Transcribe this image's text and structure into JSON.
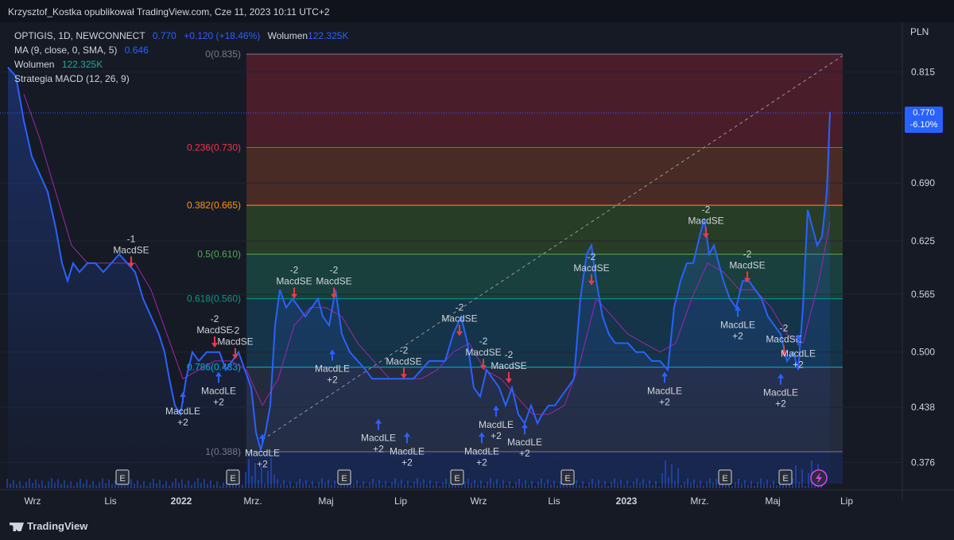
{
  "header": {
    "title": "Krzysztof_Kostka opublikował TradingView.com, Cze 11, 2023 10:11 UTC+2"
  },
  "legend": {
    "symbol": "OPTIGIS, 1D, NEWCONNECT",
    "price": "0.770",
    "change": "+0.120 (+18.46%)",
    "volume_label": "Wolumen",
    "volume_value": "122.325K",
    "ma_label": "MA (9, close, 0, SMA, 5)",
    "ma_value": "0.646",
    "volume2_label": "Wolumen",
    "volume2_value": "122.325K",
    "strategy_label": "Strategia MACD (12, 26, 9)"
  },
  "price_axis": {
    "currency": "PLN",
    "ticks": [
      "0.815",
      "0.690",
      "0.625",
      "0.565",
      "0.500",
      "0.438",
      "0.376"
    ]
  },
  "price_tag": {
    "value": "0.770",
    "change": "-6.10%"
  },
  "time_axis": {
    "labels": [
      "Wrz",
      "Lis",
      "2022",
      "Mrz.",
      "Maj",
      "Lip",
      "Wrz",
      "Lis",
      "2023",
      "Mrz.",
      "Maj",
      "Lip"
    ]
  },
  "footer": {
    "brand": "TradingView"
  },
  "colors": {
    "background": "#161a25",
    "price_line": "#2962ff",
    "ma_line": "#9c27b0",
    "buy_arrow": "#2962ff",
    "sell_arrow": "#f23645"
  },
  "chart_data": {
    "type": "line",
    "ylim": [
      0.35,
      0.87
    ],
    "fib_levels": [
      {
        "ratio": "0",
        "price": 0.835,
        "label": "0(0.835)",
        "color": "#787b86",
        "fill": "#5c1f2e"
      },
      {
        "ratio": "0.236",
        "price": 0.73,
        "label": "0.236(0.730)",
        "color": "#f23645",
        "fill": "#5a3224"
      },
      {
        "ratio": "0.382",
        "price": 0.665,
        "label": "0.382(0.665)",
        "color": "#ff9800",
        "fill": "#2e4a26"
      },
      {
        "ratio": "0.5",
        "price": 0.61,
        "label": "0.5(0.610)",
        "color": "#4caf50",
        "fill": "#1b4d45"
      },
      {
        "ratio": "0.618",
        "price": 0.56,
        "label": "0.618(0.560)",
        "color": "#089981",
        "fill": "#153e56"
      },
      {
        "ratio": "0.786",
        "price": 0.483,
        "label": "0.786(0.483)",
        "color": "#00bcd4",
        "fill": "#2a3144"
      },
      {
        "ratio": "1",
        "price": 0.388,
        "label": "1(0.388)",
        "color": "#787b86",
        "fill": "#1a2a55"
      }
    ],
    "price_series": [
      [
        0,
        0.82
      ],
      [
        10,
        0.81
      ],
      [
        20,
        0.76
      ],
      [
        30,
        0.72
      ],
      [
        40,
        0.7
      ],
      [
        50,
        0.68
      ],
      [
        60,
        0.64
      ],
      [
        68,
        0.6
      ],
      [
        75,
        0.58
      ],
      [
        82,
        0.6
      ],
      [
        90,
        0.59
      ],
      [
        100,
        0.6
      ],
      [
        110,
        0.6
      ],
      [
        120,
        0.59
      ],
      [
        130,
        0.6
      ],
      [
        140,
        0.61
      ],
      [
        150,
        0.6
      ],
      [
        160,
        0.59
      ],
      [
        170,
        0.56
      ],
      [
        180,
        0.54
      ],
      [
        190,
        0.52
      ],
      [
        197,
        0.5
      ],
      [
        203,
        0.47
      ],
      [
        210,
        0.44
      ],
      [
        217,
        0.43
      ],
      [
        224,
        0.47
      ],
      [
        232,
        0.5
      ],
      [
        240,
        0.49
      ],
      [
        250,
        0.5
      ],
      [
        258,
        0.5
      ],
      [
        266,
        0.5
      ],
      [
        274,
        0.48
      ],
      [
        282,
        0.49
      ],
      [
        290,
        0.5
      ],
      [
        298,
        0.48
      ],
      [
        306,
        0.46
      ],
      [
        312,
        0.41
      ],
      [
        318,
        0.39
      ],
      [
        324,
        0.41
      ],
      [
        330,
        0.44
      ],
      [
        336,
        0.53
      ],
      [
        342,
        0.57
      ],
      [
        350,
        0.55
      ],
      [
        358,
        0.56
      ],
      [
        366,
        0.55
      ],
      [
        374,
        0.54
      ],
      [
        382,
        0.55
      ],
      [
        390,
        0.56
      ],
      [
        396,
        0.54
      ],
      [
        404,
        0.53
      ],
      [
        412,
        0.57
      ],
      [
        420,
        0.52
      ],
      [
        430,
        0.5
      ],
      [
        440,
        0.49
      ],
      [
        450,
        0.48
      ],
      [
        458,
        0.47
      ],
      [
        470,
        0.47
      ],
      [
        480,
        0.47
      ],
      [
        490,
        0.47
      ],
      [
        500,
        0.47
      ],
      [
        510,
        0.47
      ],
      [
        520,
        0.48
      ],
      [
        530,
        0.49
      ],
      [
        540,
        0.49
      ],
      [
        550,
        0.49
      ],
      [
        560,
        0.52
      ],
      [
        570,
        0.54
      ],
      [
        578,
        0.51
      ],
      [
        586,
        0.46
      ],
      [
        594,
        0.45
      ],
      [
        602,
        0.48
      ],
      [
        610,
        0.47
      ],
      [
        618,
        0.46
      ],
      [
        626,
        0.44
      ],
      [
        634,
        0.46
      ],
      [
        642,
        0.43
      ],
      [
        650,
        0.42
      ],
      [
        658,
        0.44
      ],
      [
        666,
        0.42
      ],
      [
        672,
        0.43
      ],
      [
        680,
        0.44
      ],
      [
        688,
        0.44
      ],
      [
        696,
        0.45
      ],
      [
        704,
        0.46
      ],
      [
        712,
        0.47
      ],
      [
        720,
        0.56
      ],
      [
        728,
        0.61
      ],
      [
        734,
        0.62
      ],
      [
        740,
        0.58
      ],
      [
        748,
        0.54
      ],
      [
        756,
        0.52
      ],
      [
        764,
        0.51
      ],
      [
        772,
        0.51
      ],
      [
        780,
        0.51
      ],
      [
        790,
        0.5
      ],
      [
        800,
        0.5
      ],
      [
        810,
        0.49
      ],
      [
        820,
        0.49
      ],
      [
        830,
        0.48
      ],
      [
        838,
        0.55
      ],
      [
        846,
        0.58
      ],
      [
        854,
        0.6
      ],
      [
        862,
        0.6
      ],
      [
        870,
        0.63
      ],
      [
        876,
        0.65
      ],
      [
        882,
        0.61
      ],
      [
        888,
        0.62
      ],
      [
        894,
        0.6
      ],
      [
        900,
        0.58
      ],
      [
        908,
        0.56
      ],
      [
        916,
        0.55
      ],
      [
        924,
        0.58
      ],
      [
        932,
        0.58
      ],
      [
        940,
        0.57
      ],
      [
        948,
        0.56
      ],
      [
        956,
        0.54
      ],
      [
        964,
        0.53
      ],
      [
        972,
        0.52
      ],
      [
        980,
        0.49
      ],
      [
        988,
        0.5
      ],
      [
        994,
        0.48
      ],
      [
        1000,
        0.55
      ],
      [
        1006,
        0.66
      ],
      [
        1012,
        0.64
      ],
      [
        1018,
        0.62
      ],
      [
        1024,
        0.63
      ],
      [
        1030,
        0.68
      ],
      [
        1034,
        0.77
      ]
    ],
    "ma_series": [
      [
        20,
        0.79
      ],
      [
        40,
        0.74
      ],
      [
        60,
        0.68
      ],
      [
        80,
        0.62
      ],
      [
        100,
        0.6
      ],
      [
        120,
        0.6
      ],
      [
        140,
        0.6
      ],
      [
        160,
        0.6
      ],
      [
        180,
        0.57
      ],
      [
        200,
        0.52
      ],
      [
        220,
        0.47
      ],
      [
        240,
        0.48
      ],
      [
        260,
        0.49
      ],
      [
        280,
        0.49
      ],
      [
        300,
        0.48
      ],
      [
        320,
        0.44
      ],
      [
        340,
        0.47
      ],
      [
        360,
        0.53
      ],
      [
        380,
        0.55
      ],
      [
        400,
        0.55
      ],
      [
        420,
        0.54
      ],
      [
        440,
        0.51
      ],
      [
        460,
        0.49
      ],
      [
        480,
        0.47
      ],
      [
        500,
        0.47
      ],
      [
        520,
        0.47
      ],
      [
        540,
        0.48
      ],
      [
        560,
        0.5
      ],
      [
        580,
        0.51
      ],
      [
        600,
        0.48
      ],
      [
        620,
        0.47
      ],
      [
        640,
        0.45
      ],
      [
        660,
        0.43
      ],
      [
        680,
        0.43
      ],
      [
        700,
        0.44
      ],
      [
        720,
        0.49
      ],
      [
        740,
        0.56
      ],
      [
        760,
        0.54
      ],
      [
        780,
        0.52
      ],
      [
        800,
        0.51
      ],
      [
        820,
        0.5
      ],
      [
        840,
        0.51
      ],
      [
        860,
        0.56
      ],
      [
        880,
        0.6
      ],
      [
        900,
        0.59
      ],
      [
        920,
        0.57
      ],
      [
        940,
        0.57
      ],
      [
        960,
        0.55
      ],
      [
        980,
        0.52
      ],
      [
        1000,
        0.51
      ],
      [
        1020,
        0.58
      ],
      [
        1034,
        0.646
      ]
    ],
    "signals": [
      {
        "x": 165,
        "price": 0.595,
        "type": "sell",
        "label": "MacdSE",
        "qty": "-1"
      },
      {
        "x": 230,
        "price": 0.455,
        "type": "buy",
        "label": "MacdLE",
        "qty": "+2"
      },
      {
        "x": 270,
        "price": 0.505,
        "type": "sell",
        "label": "MacdSE",
        "qty": "-2"
      },
      {
        "x": 275,
        "price": 0.478,
        "type": "buy",
        "label": "MacdLE",
        "qty": "+2"
      },
      {
        "x": 296,
        "price": 0.492,
        "type": "sell",
        "label": "MacdSE",
        "qty": "-2"
      },
      {
        "x": 330,
        "price": 0.408,
        "type": "buy",
        "label": "MacdLE",
        "qty": "+2"
      },
      {
        "x": 370,
        "price": 0.56,
        "type": "sell",
        "label": "MacdSE",
        "qty": "-2"
      },
      {
        "x": 420,
        "price": 0.56,
        "type": "sell",
        "label": "MacdSE",
        "qty": "-2"
      },
      {
        "x": 418,
        "price": 0.503,
        "type": "buy",
        "label": "MacdLE",
        "qty": "+2"
      },
      {
        "x": 508,
        "price": 0.47,
        "type": "sell",
        "label": "MacdSE",
        "qty": "-2"
      },
      {
        "x": 476,
        "price": 0.425,
        "type": "buy",
        "label": "MacdLE",
        "qty": "+2"
      },
      {
        "x": 512,
        "price": 0.41,
        "type": "buy",
        "label": "MacdLE",
        "qty": "+2"
      },
      {
        "x": 578,
        "price": 0.518,
        "type": "sell",
        "label": "MacdSE",
        "qty": "-2"
      },
      {
        "x": 608,
        "price": 0.48,
        "type": "sell",
        "label": "MacdSE",
        "qty": "-2"
      },
      {
        "x": 640,
        "price": 0.465,
        "type": "sell",
        "label": "MacdSE",
        "qty": "-2"
      },
      {
        "x": 606,
        "price": 0.41,
        "type": "buy",
        "label": "MacdLE",
        "qty": "+2"
      },
      {
        "x": 624,
        "price": 0.44,
        "type": "buy",
        "label": "MacdLE",
        "qty": "+2"
      },
      {
        "x": 660,
        "price": 0.42,
        "type": "buy",
        "label": "MacdLE",
        "qty": "+2"
      },
      {
        "x": 744,
        "price": 0.575,
        "type": "sell",
        "label": "MacdSE",
        "qty": "-2"
      },
      {
        "x": 836,
        "price": 0.478,
        "type": "buy",
        "label": "MacdLE",
        "qty": "+2"
      },
      {
        "x": 888,
        "price": 0.628,
        "type": "sell",
        "label": "MacdSE",
        "qty": "-2"
      },
      {
        "x": 940,
        "price": 0.578,
        "type": "sell",
        "label": "MacdSE",
        "qty": "-2"
      },
      {
        "x": 928,
        "price": 0.552,
        "type": "buy",
        "label": "MacdLE",
        "qty": "+2"
      },
      {
        "x": 986,
        "price": 0.495,
        "type": "sell",
        "label": "MacdSE",
        "qty": "-2"
      },
      {
        "x": 982,
        "price": 0.476,
        "type": "buy",
        "label": "MacdLE",
        "qty": "+2"
      },
      {
        "x": 1004,
        "price": 0.52,
        "type": "buy",
        "label": "MacdLE",
        "qty": "+2"
      }
    ],
    "earnings_markers": [
      {
        "x": 154,
        "label": "E"
      },
      {
        "x": 293,
        "label": "E"
      },
      {
        "x": 433,
        "label": "E"
      },
      {
        "x": 575,
        "label": "E"
      },
      {
        "x": 714,
        "label": "E"
      },
      {
        "x": 912,
        "label": "E"
      },
      {
        "x": 988,
        "label": "E"
      }
    ]
  }
}
